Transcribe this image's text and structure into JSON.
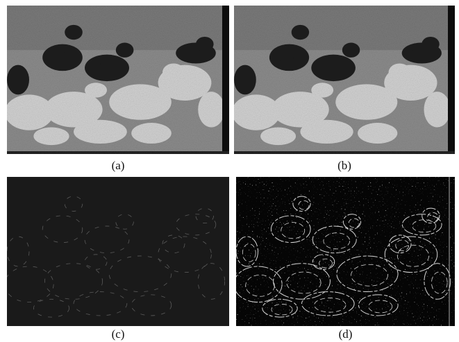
{
  "panels": [
    {
      "caption": "(a)"
    },
    {
      "caption": "(b)"
    },
    {
      "caption": "(c)"
    },
    {
      "caption": "(d)"
    }
  ]
}
